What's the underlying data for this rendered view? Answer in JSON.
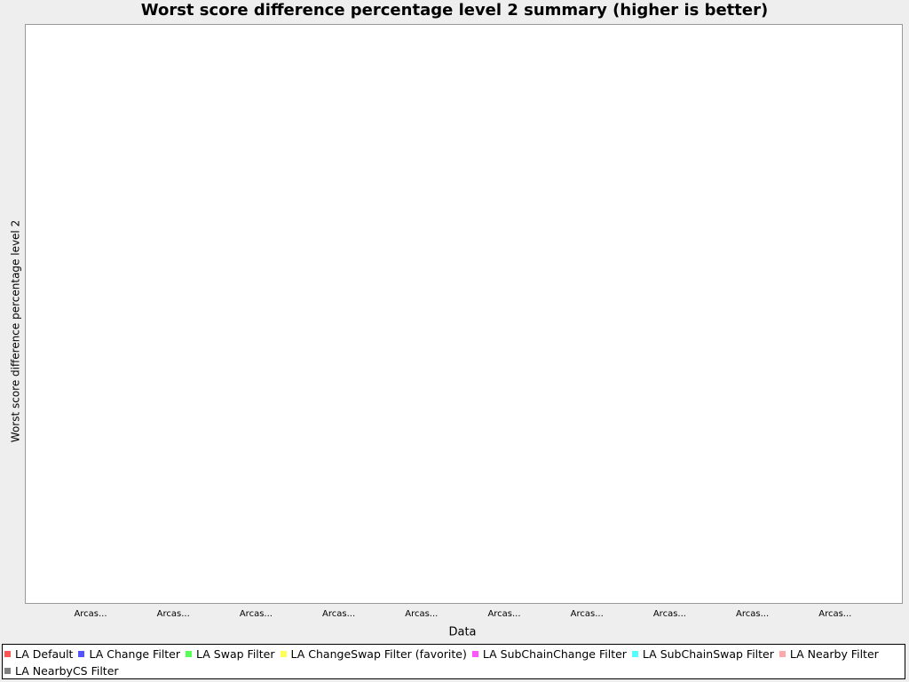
{
  "chart_data": {
    "type": "bar",
    "title": "Worst score difference percentage level 2 summary (higher is better)",
    "x_label": "Data",
    "y_label": "Worst score difference percentage level 2",
    "categories": [
      "Arcas...",
      "Arcas...",
      "Arcas...",
      "Arcas...",
      "Arcas...",
      "Arcas...",
      "Arcas...",
      "Arcas...",
      "Arcas...",
      "Arcas..."
    ],
    "series": [
      {
        "name": "LA Default",
        "color": "#ff5555"
      },
      {
        "name": "LA Change Filter",
        "color": "#5555ff"
      },
      {
        "name": "LA Swap Filter",
        "color": "#55ff55"
      },
      {
        "name": "LA ChangeSwap Filter (favorite)",
        "color": "#ffff55"
      },
      {
        "name": "LA SubChainChange Filter",
        "color": "#ff55ff"
      },
      {
        "name": "LA SubChainSwap Filter",
        "color": "#55ffff"
      },
      {
        "name": "LA Nearby Filter",
        "color": "#ffaaaa"
      },
      {
        "name": "LA NearbyCS Filter",
        "color": "#808080"
      }
    ]
  }
}
